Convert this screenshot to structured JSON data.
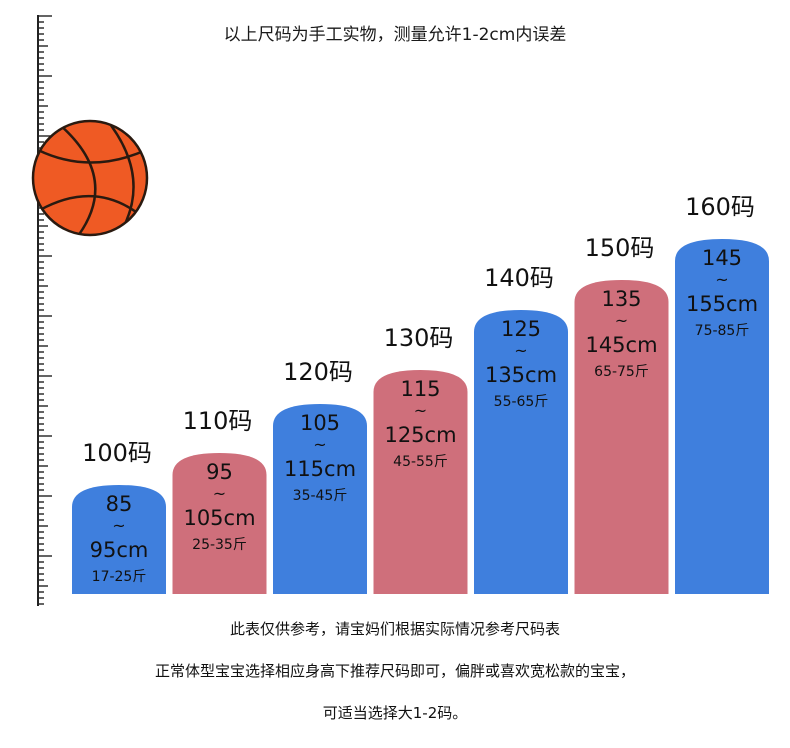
{
  "header_note": "以上尺码为手工实物，测量允许1-2cm内误差",
  "footer_notes": [
    "此表仅供参考，请宝妈们根据实际情况参考尺码表",
    "正常体型宝宝选择相应身高下推荐尺码即可，偏胖或喜欢宽松款的宝宝，",
    "可适当选择大1-2码。"
  ],
  "colors": {
    "blue": "#3f7fdd",
    "pink": "#cf6f7b",
    "ball": "#ef5a24",
    "ruler": "#222222"
  },
  "icons": [
    "ruler-icon",
    "basketball-icon"
  ],
  "chart_data": {
    "type": "bar",
    "categories": [
      "100码",
      "110码",
      "120码",
      "130码",
      "140码",
      "150码",
      "160码"
    ],
    "height_ranges": [
      {
        "min": "85",
        "tilde": "~",
        "max": "95cm",
        "weight": "17-25斤"
      },
      {
        "min": "95",
        "tilde": "~",
        "max": "105cm",
        "weight": "25-35斤"
      },
      {
        "min": "105",
        "tilde": "~",
        "max": "115cm",
        "weight": "35-45斤"
      },
      {
        "min": "115",
        "tilde": "~",
        "max": "125cm",
        "weight": "45-55斤"
      },
      {
        "min": "125",
        "tilde": "~",
        "max": "135cm",
        "weight": "55-65斤"
      },
      {
        "min": "135",
        "tilde": "~",
        "max": "145cm",
        "weight": "65-75斤"
      },
      {
        "min": "145",
        "tilde": "~",
        "max": "155cm",
        "weight": "75-85斤"
      }
    ],
    "values": [
      100,
      110,
      120,
      130,
      140,
      150,
      160
    ],
    "bar_colors": [
      "#3f7fdd",
      "#cf6f7b",
      "#3f7fdd",
      "#cf6f7b",
      "#3f7fdd",
      "#cf6f7b",
      "#3f7fdd"
    ]
  }
}
